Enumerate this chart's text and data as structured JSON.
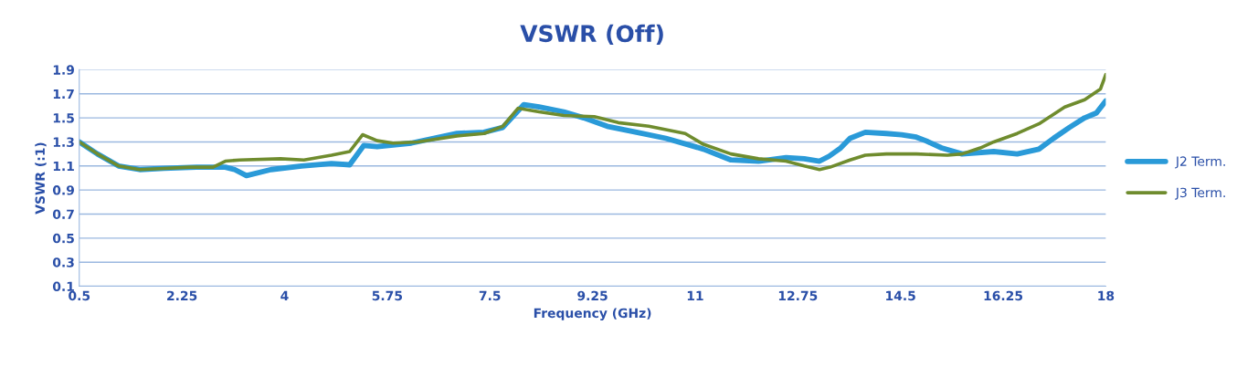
{
  "chart_data": {
    "type": "line",
    "title": "VSWR (Off)",
    "xlabel": "Frequency (GHz)",
    "ylabel": "VSWR (:1)",
    "xlim": [
      0.5,
      18
    ],
    "xticks": [
      0.5,
      2.25,
      4,
      5.75,
      7.5,
      9.25,
      11,
      12.75,
      14.5,
      16.25,
      18
    ],
    "ylim": [
      0.1,
      1.9
    ],
    "yticks": [
      0.1,
      0.3,
      0.5,
      0.7,
      0.9,
      1.1,
      1.3,
      1.5,
      1.7,
      1.9
    ],
    "grid": "y",
    "legend": "right",
    "marker": "none",
    "line_style": "solid",
    "series": [
      {
        "name": "J2 Term.",
        "color": "#2a9ad8",
        "x": [
          0.5,
          0.81,
          1.17,
          1.53,
          1.95,
          2.5,
          2.99,
          3.15,
          3.35,
          3.77,
          4.29,
          4.8,
          5.11,
          5.35,
          5.58,
          6.16,
          6.94,
          7.4,
          7.72,
          8.08,
          8.34,
          8.76,
          9.1,
          9.5,
          10.0,
          10.5,
          11.14,
          11.61,
          12.08,
          12.55,
          12.86,
          13.12,
          13.28,
          13.48,
          13.64,
          13.9,
          14.26,
          14.52,
          14.77,
          14.93,
          15.2,
          15.55,
          16.09,
          16.49,
          16.86,
          17.11,
          17.38,
          17.64,
          17.84,
          18.0
        ],
        "values": [
          1.3,
          1.2,
          1.1,
          1.07,
          1.08,
          1.09,
          1.09,
          1.07,
          1.02,
          1.07,
          1.1,
          1.12,
          1.11,
          1.27,
          1.26,
          1.29,
          1.37,
          1.38,
          1.42,
          1.61,
          1.59,
          1.55,
          1.5,
          1.43,
          1.38,
          1.33,
          1.24,
          1.15,
          1.14,
          1.17,
          1.16,
          1.14,
          1.18,
          1.25,
          1.33,
          1.38,
          1.37,
          1.36,
          1.34,
          1.31,
          1.25,
          1.2,
          1.22,
          1.2,
          1.24,
          1.33,
          1.42,
          1.5,
          1.54,
          1.64
        ]
      },
      {
        "name": "J3 Term.",
        "color": "#6f8c2e",
        "x": [
          0.5,
          0.81,
          1.17,
          1.53,
          1.95,
          2.37,
          2.78,
          2.99,
          3.24,
          3.93,
          4.33,
          4.8,
          5.11,
          5.33,
          5.58,
          5.85,
          6.27,
          6.94,
          7.4,
          7.72,
          7.98,
          8.34,
          8.76,
          9.28,
          9.69,
          10.21,
          10.83,
          11.14,
          11.61,
          12.08,
          12.55,
          12.86,
          13.12,
          13.3,
          13.64,
          13.9,
          14.26,
          14.77,
          15.3,
          15.55,
          15.86,
          16.09,
          16.49,
          16.86,
          17.3,
          17.64,
          17.91,
          18.0
        ],
        "values": [
          1.3,
          1.2,
          1.1,
          1.07,
          1.08,
          1.09,
          1.09,
          1.14,
          1.15,
          1.16,
          1.15,
          1.19,
          1.22,
          1.36,
          1.31,
          1.29,
          1.3,
          1.35,
          1.37,
          1.43,
          1.58,
          1.55,
          1.52,
          1.51,
          1.46,
          1.43,
          1.37,
          1.28,
          1.2,
          1.16,
          1.14,
          1.1,
          1.07,
          1.09,
          1.15,
          1.19,
          1.2,
          1.2,
          1.19,
          1.2,
          1.25,
          1.3,
          1.37,
          1.45,
          1.59,
          1.65,
          1.74,
          1.86
        ]
      }
    ]
  }
}
